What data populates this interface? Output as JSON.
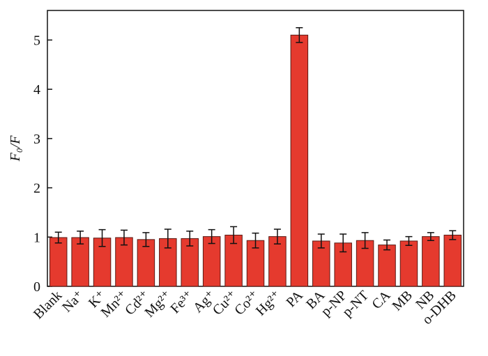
{
  "chart_data": {
    "type": "bar",
    "y_label": "F₀/F",
    "categories": [
      "Blank",
      "Na⁺",
      "K⁺",
      "Mn²⁺",
      "Cd²⁺",
      "Mg²⁺",
      "Fe³⁺",
      "Ag⁺",
      "Cu²⁺",
      "Co²⁺",
      "Hg²⁺",
      "PA",
      "BA",
      "p-NP",
      "p-NT",
      "CA",
      "MB",
      "NB",
      "o-DHB"
    ],
    "values": [
      0.99,
      0.99,
      0.98,
      0.99,
      0.95,
      0.97,
      0.97,
      1.01,
      1.04,
      0.93,
      1.01,
      5.1,
      0.92,
      0.88,
      0.93,
      0.84,
      0.92,
      1.01,
      1.04
    ],
    "errors": [
      0.11,
      0.13,
      0.17,
      0.15,
      0.14,
      0.19,
      0.15,
      0.14,
      0.17,
      0.15,
      0.15,
      0.15,
      0.14,
      0.18,
      0.16,
      0.1,
      0.09,
      0.08,
      0.09
    ],
    "color": "#e53a2e",
    "ylim": [
      0,
      5.6
    ],
    "yticks": [
      0,
      1,
      2,
      3,
      4,
      5
    ]
  }
}
